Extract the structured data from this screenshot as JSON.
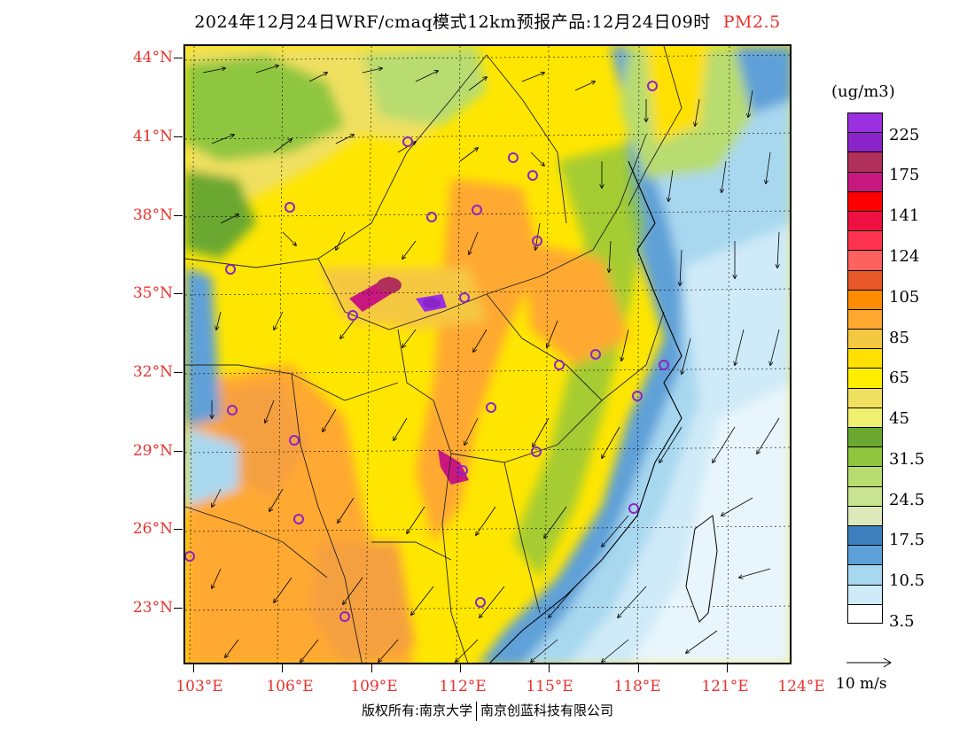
{
  "header": {
    "title": "2024年12月24日WRF/cmaq模式12km预报产品:12月24日09时",
    "pollutant": "PM2.5",
    "pollutant_color": "#e8322d"
  },
  "axes": {
    "lat_labels": [
      "44°N",
      "41°N",
      "38°N",
      "35°N",
      "32°N",
      "29°N",
      "26°N",
      "23°N"
    ],
    "lon_labels": [
      "103°E",
      "106°E",
      "109°E",
      "112°E",
      "115°E",
      "118°E",
      "121°E",
      "124°E"
    ]
  },
  "legend": {
    "unit": "(ug/m3)",
    "labels": [
      "225",
      "175",
      "141",
      "124",
      "105",
      "85",
      "65",
      "45",
      "31.5",
      "24.5",
      "17.5",
      "10.5",
      "3.5"
    ],
    "colors": [
      "#9b30e0",
      "#8b24c8",
      "#b0305a",
      "#c81880",
      "#ff0000",
      "#ee1040",
      "#ff3250",
      "#ff6060",
      "#e85828",
      "#ff8c00",
      "#ffa830",
      "#f5c842",
      "#ffe000",
      "#ffee00",
      "#f0e060",
      "#f0f070",
      "#6aa832",
      "#8ec63f",
      "#b8dc70",
      "#c8e490",
      "#dde8bb",
      "#3e7fc0",
      "#5ea0d8",
      "#a8d8f0",
      "#cfeaf8",
      "#ffffff"
    ],
    "wind_label": "10 m/s"
  },
  "footer": {
    "left": "版权所有:南京大学",
    "right": "南京创蓝科技有限公司"
  }
}
